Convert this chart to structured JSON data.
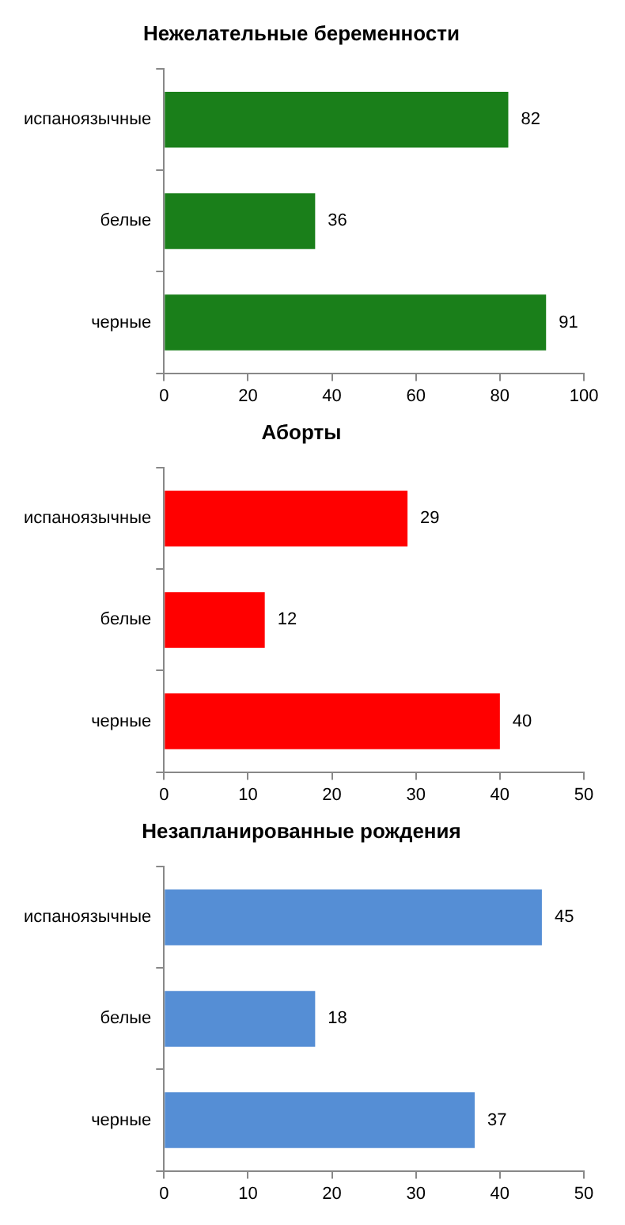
{
  "chart_data": [
    {
      "type": "bar",
      "orientation": "horizontal",
      "title": "Нежелательные беременности",
      "categories": [
        "испаноязычные",
        "белые",
        "черные"
      ],
      "values": [
        82,
        36,
        91
      ],
      "color": "#1a7f1a",
      "xlim": [
        0,
        100
      ],
      "xticks": [
        0,
        20,
        40,
        60,
        80,
        100
      ],
      "data_labels": true
    },
    {
      "type": "bar",
      "orientation": "horizontal",
      "title": "Аборты",
      "categories": [
        "испаноязычные",
        "белые",
        "черные"
      ],
      "values": [
        29,
        12,
        40
      ],
      "color": "#ff0000",
      "xlim": [
        0,
        50
      ],
      "xticks": [
        0,
        10,
        20,
        30,
        40,
        50
      ],
      "data_labels": true
    },
    {
      "type": "bar",
      "orientation": "horizontal",
      "title": "Незапланированные рождения",
      "categories": [
        "испаноязычные",
        "белые",
        "черные"
      ],
      "values": [
        45,
        18,
        37
      ],
      "color": "#558ed5",
      "xlim": [
        0,
        50
      ],
      "xticks": [
        0,
        10,
        20,
        30,
        40,
        50
      ],
      "data_labels": true
    }
  ]
}
